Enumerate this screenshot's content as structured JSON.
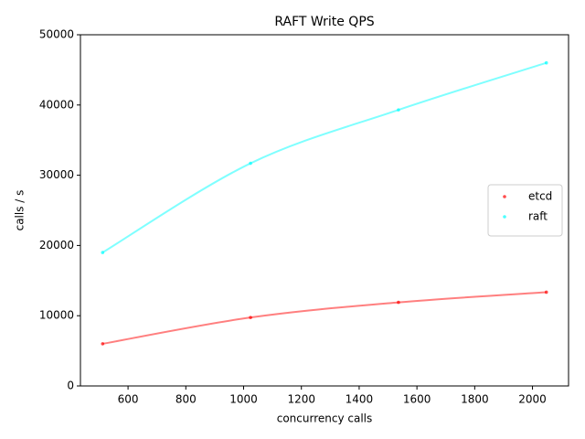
{
  "chart_data": {
    "type": "scatter",
    "title": "RAFT Write QPS",
    "x_label": "concurrency calls",
    "y_label": "calls / s",
    "x": [
      512,
      1024,
      1536,
      2048
    ],
    "series": [
      {
        "name": "etcd",
        "color": "#ff0000",
        "values": [
          6000,
          9750,
          11900,
          13350
        ]
      },
      {
        "name": "raft",
        "color": "#00ffff",
        "values": [
          19000,
          31700,
          39300,
          46000
        ]
      }
    ],
    "xlim": [
      435.2,
      2124.8
    ],
    "xticks": [
      600,
      800,
      1000,
      1200,
      1400,
      1600,
      1800,
      2000
    ],
    "ylim": [
      0,
      50000
    ],
    "yticks": [
      0,
      10000,
      20000,
      30000,
      40000,
      50000
    ],
    "legend": "center right"
  }
}
